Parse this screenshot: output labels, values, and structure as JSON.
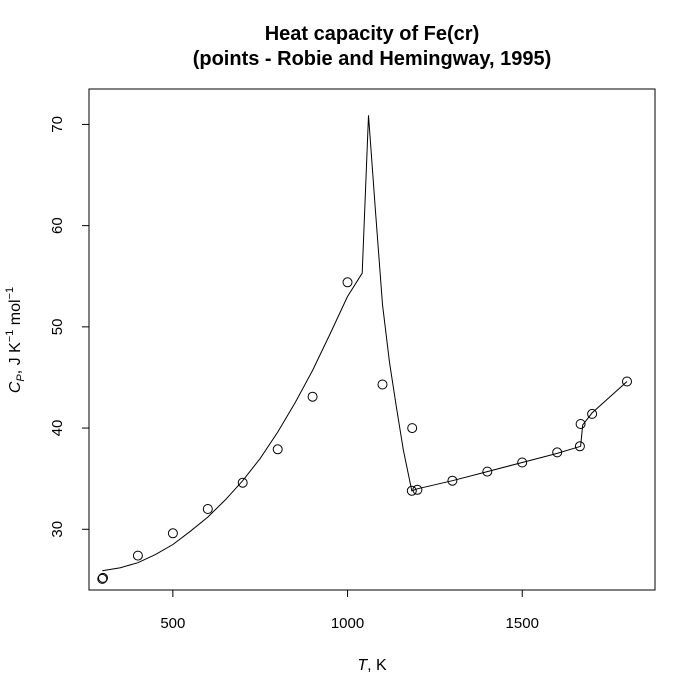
{
  "chart_data": {
    "type": "line",
    "title": "Heat capacity of Fe(cr)",
    "subtitle": "(points - Robie and Hemingway, 1995)",
    "xlabel": {
      "var": "T",
      "unit": ", K"
    },
    "ylabel": {
      "var": "C",
      "sub": "P",
      "unit1": ", J K",
      "exp": "−1",
      "unit2": " mol",
      "exp2": "−1"
    },
    "xlim": [
      260,
      1880
    ],
    "ylim": [
      24.0,
      73.5
    ],
    "xticks": [
      500,
      1000,
      1500
    ],
    "yticks": [
      30,
      40,
      50,
      60,
      70
    ],
    "grid": false,
    "legend": "none",
    "series": [
      {
        "type": "line",
        "x": [
          298.15,
          350,
          400,
          450,
          500,
          550,
          600,
          650,
          700,
          750,
          800,
          850,
          900,
          950,
          1000,
          1042,
          1060,
          1080,
          1100,
          1120,
          1140,
          1160,
          1184,
          1200,
          1300,
          1400,
          1500,
          1600,
          1667,
          1673,
          1700,
          1800
        ],
        "y": [
          25.9,
          26.2,
          26.7,
          27.5,
          28.5,
          29.8,
          31.2,
          32.9,
          34.8,
          37.0,
          39.6,
          42.5,
          45.7,
          49.3,
          53.0,
          55.3,
          70.9,
          61.4,
          52.2,
          46.5,
          42.0,
          37.8,
          33.8,
          34.0,
          34.8,
          35.7,
          36.6,
          37.5,
          38.2,
          40.3,
          41.5,
          44.6
        ]
      },
      {
        "type": "scatter",
        "marker": "open-circle",
        "x": [
          298.15,
          300,
          400,
          500,
          600,
          700,
          800,
          900,
          1000,
          1100,
          1184,
          1185,
          1200,
          1300,
          1400,
          1500,
          1600,
          1665,
          1667,
          1700,
          1800
        ],
        "y": [
          25.1,
          25.2,
          27.4,
          29.6,
          32.0,
          34.6,
          37.9,
          43.1,
          54.4,
          44.3,
          33.8,
          40.0,
          33.9,
          34.8,
          35.7,
          36.6,
          37.6,
          38.2,
          40.4,
          41.4,
          44.6
        ]
      }
    ]
  }
}
